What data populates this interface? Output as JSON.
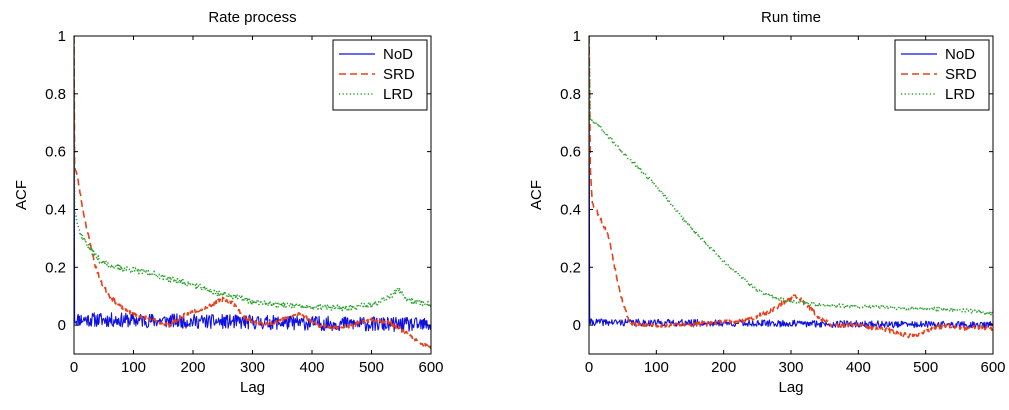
{
  "chart_data": [
    {
      "type": "line",
      "title": "Rate process",
      "xlabel": "Lag",
      "ylabel": "ACF",
      "xlim": [
        0,
        600
      ],
      "ylim": [
        -0.1,
        1
      ],
      "xticks": [
        0,
        100,
        200,
        300,
        400,
        500,
        600
      ],
      "yticks": [
        0,
        0.2,
        0.4,
        0.6,
        0.8,
        1
      ],
      "ytick_labels": [
        "0",
        "0.2",
        "0.4",
        "0.6",
        "0.8",
        "1"
      ],
      "grid": false,
      "legend_position": "top-right",
      "series": [
        {
          "name": "NoD",
          "color": "#1010e0",
          "style": "solid",
          "noise": 0.025,
          "seed": 11,
          "points": [
            [
              0,
              1
            ],
            [
              1,
              0.02
            ],
            [
              600,
              0.0
            ]
          ]
        },
        {
          "name": "SRD",
          "color": "#e8401a",
          "style": "dashed",
          "noise": 0.007,
          "seed": 23,
          "points": [
            [
              0,
              1
            ],
            [
              1,
              0.55
            ],
            [
              5,
              0.52
            ],
            [
              15,
              0.4
            ],
            [
              25,
              0.3
            ],
            [
              35,
              0.21
            ],
            [
              45,
              0.15
            ],
            [
              60,
              0.1
            ],
            [
              80,
              0.06
            ],
            [
              100,
              0.04
            ],
            [
              130,
              0.02
            ],
            [
              160,
              0.0
            ],
            [
              190,
              0.04
            ],
            [
              220,
              0.06
            ],
            [
              250,
              0.09
            ],
            [
              265,
              0.08
            ],
            [
              290,
              0.02
            ],
            [
              320,
              0.0
            ],
            [
              350,
              0.02
            ],
            [
              380,
              0.04
            ],
            [
              410,
              0.0
            ],
            [
              440,
              -0.01
            ],
            [
              470,
              0.0
            ],
            [
              500,
              0.02
            ],
            [
              530,
              0.01
            ],
            [
              560,
              -0.03
            ],
            [
              580,
              -0.06
            ],
            [
              600,
              -0.08
            ]
          ]
        },
        {
          "name": "LRD",
          "color": "#2aa02a",
          "style": "dotted",
          "noise": 0.01,
          "seed": 37,
          "points": [
            [
              0,
              1
            ],
            [
              1,
              0.4
            ],
            [
              10,
              0.32
            ],
            [
              25,
              0.27
            ],
            [
              45,
              0.22
            ],
            [
              70,
              0.2
            ],
            [
              100,
              0.19
            ],
            [
              130,
              0.18
            ],
            [
              160,
              0.16
            ],
            [
              200,
              0.14
            ],
            [
              240,
              0.11
            ],
            [
              270,
              0.1
            ],
            [
              300,
              0.08
            ],
            [
              350,
              0.07
            ],
            [
              400,
              0.06
            ],
            [
              450,
              0.06
            ],
            [
              500,
              0.07
            ],
            [
              530,
              0.1
            ],
            [
              545,
              0.12
            ],
            [
              560,
              0.09
            ],
            [
              600,
              0.07
            ]
          ]
        }
      ]
    },
    {
      "type": "line",
      "title": "Run time",
      "xlabel": "Lag",
      "ylabel": "ACF",
      "xlim": [
        0,
        600
      ],
      "ylim": [
        -0.1,
        1
      ],
      "xticks": [
        0,
        100,
        200,
        300,
        400,
        500,
        600
      ],
      "yticks": [
        0,
        0.2,
        0.4,
        0.6,
        0.8,
        1
      ],
      "ytick_labels": [
        "0",
        "0.2",
        "0.4",
        "0.6",
        "0.8",
        "1"
      ],
      "grid": false,
      "legend_position": "top-right",
      "series": [
        {
          "name": "NoD",
          "color": "#1010e0",
          "style": "solid",
          "noise": 0.012,
          "seed": 41,
          "points": [
            [
              0,
              1
            ],
            [
              1,
              0.01
            ],
            [
              600,
              0.0
            ]
          ]
        },
        {
          "name": "SRD",
          "color": "#e8401a",
          "style": "dashed",
          "noise": 0.008,
          "seed": 53,
          "points": [
            [
              0,
              1
            ],
            [
              2,
              0.55
            ],
            [
              5,
              0.42
            ],
            [
              15,
              0.38
            ],
            [
              30,
              0.3
            ],
            [
              40,
              0.18
            ],
            [
              50,
              0.08
            ],
            [
              60,
              0.01
            ],
            [
              70,
              0.0
            ],
            [
              150,
              0.0
            ],
            [
              200,
              0.01
            ],
            [
              240,
              0.02
            ],
            [
              270,
              0.05
            ],
            [
              290,
              0.08
            ],
            [
              305,
              0.1
            ],
            [
              320,
              0.08
            ],
            [
              340,
              0.03
            ],
            [
              360,
              0.0
            ],
            [
              400,
              0.0
            ],
            [
              450,
              -0.02
            ],
            [
              480,
              -0.04
            ],
            [
              500,
              -0.02
            ],
            [
              530,
              0.0
            ],
            [
              560,
              -0.01
            ],
            [
              600,
              -0.01
            ]
          ]
        },
        {
          "name": "LRD",
          "color": "#2aa02a",
          "style": "dotted",
          "noise": 0.006,
          "seed": 67,
          "points": [
            [
              0,
              1
            ],
            [
              2,
              0.71
            ],
            [
              10,
              0.7
            ],
            [
              50,
              0.6
            ],
            [
              100,
              0.48
            ],
            [
              150,
              0.34
            ],
            [
              200,
              0.22
            ],
            [
              250,
              0.12
            ],
            [
              280,
              0.09
            ],
            [
              310,
              0.08
            ],
            [
              340,
              0.07
            ],
            [
              400,
              0.065
            ],
            [
              460,
              0.06
            ],
            [
              520,
              0.055
            ],
            [
              560,
              0.05
            ],
            [
              600,
              0.04
            ]
          ]
        }
      ]
    }
  ]
}
